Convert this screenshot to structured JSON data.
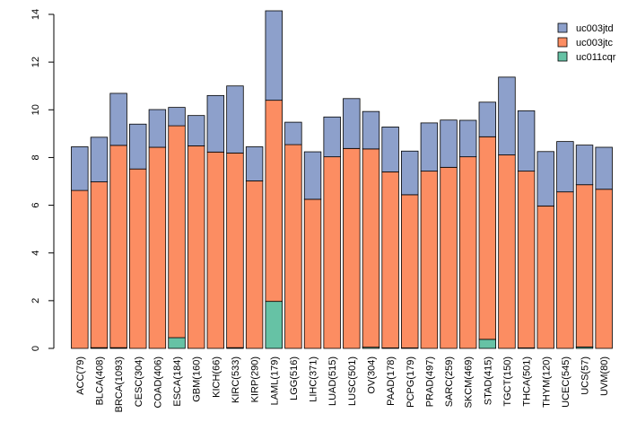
{
  "chart_data": {
    "type": "bar",
    "stacked": true,
    "title": "",
    "xlabel": "",
    "ylabel": "",
    "ylim": [
      0,
      14
    ],
    "yticks": [
      0,
      2,
      4,
      6,
      8,
      10,
      12,
      14
    ],
    "legend_position": "top-right",
    "grid": false,
    "categories": [
      "ACC(79)",
      "BLCA(408)",
      "BRCA(1093)",
      "CESC(304)",
      "COAD(406)",
      "ESCA(184)",
      "GBM(160)",
      "KICH(66)",
      "KIRC(533)",
      "KIRP(290)",
      "LAML(179)",
      "LGG(516)",
      "LIHC(371)",
      "LUAD(515)",
      "LUSC(501)",
      "OV(304)",
      "PAAD(178)",
      "PCPG(179)",
      "PRAD(497)",
      "SARC(259)",
      "SKCM(469)",
      "STAD(415)",
      "TGCT(150)",
      "THCA(501)",
      "THYM(120)",
      "UCEC(545)",
      "UCS(57)",
      "UVM(80)"
    ],
    "series": [
      {
        "name": "uc011cqr",
        "color": "#66c2a5",
        "values": [
          0,
          0.03,
          0.03,
          0,
          0,
          0.45,
          0,
          0,
          0.03,
          0,
          1.97,
          0,
          0,
          0,
          0,
          0.05,
          0.02,
          0.02,
          0,
          0,
          0,
          0.38,
          0,
          0.02,
          0,
          0,
          0.06,
          0
        ]
      },
      {
        "name": "uc003jtc",
        "color": "#fc8d62",
        "values": [
          6.62,
          6.95,
          8.48,
          7.52,
          8.43,
          8.88,
          8.49,
          8.23,
          8.16,
          7.02,
          8.43,
          8.54,
          6.25,
          8.03,
          8.38,
          8.31,
          7.38,
          6.42,
          7.43,
          7.59,
          8.03,
          8.49,
          8.11,
          7.41,
          5.97,
          6.56,
          6.8,
          6.67
        ]
      },
      {
        "name": "uc003jtd",
        "color": "#8da0cb",
        "values": [
          1.83,
          1.87,
          2.18,
          1.88,
          1.58,
          0.77,
          1.27,
          2.37,
          2.81,
          1.43,
          3.75,
          0.94,
          1.99,
          1.67,
          2.09,
          1.57,
          1.88,
          1.83,
          2.02,
          1.98,
          1.53,
          1.45,
          3.26,
          2.53,
          2.28,
          2.11,
          1.66,
          1.76
        ]
      }
    ]
  }
}
